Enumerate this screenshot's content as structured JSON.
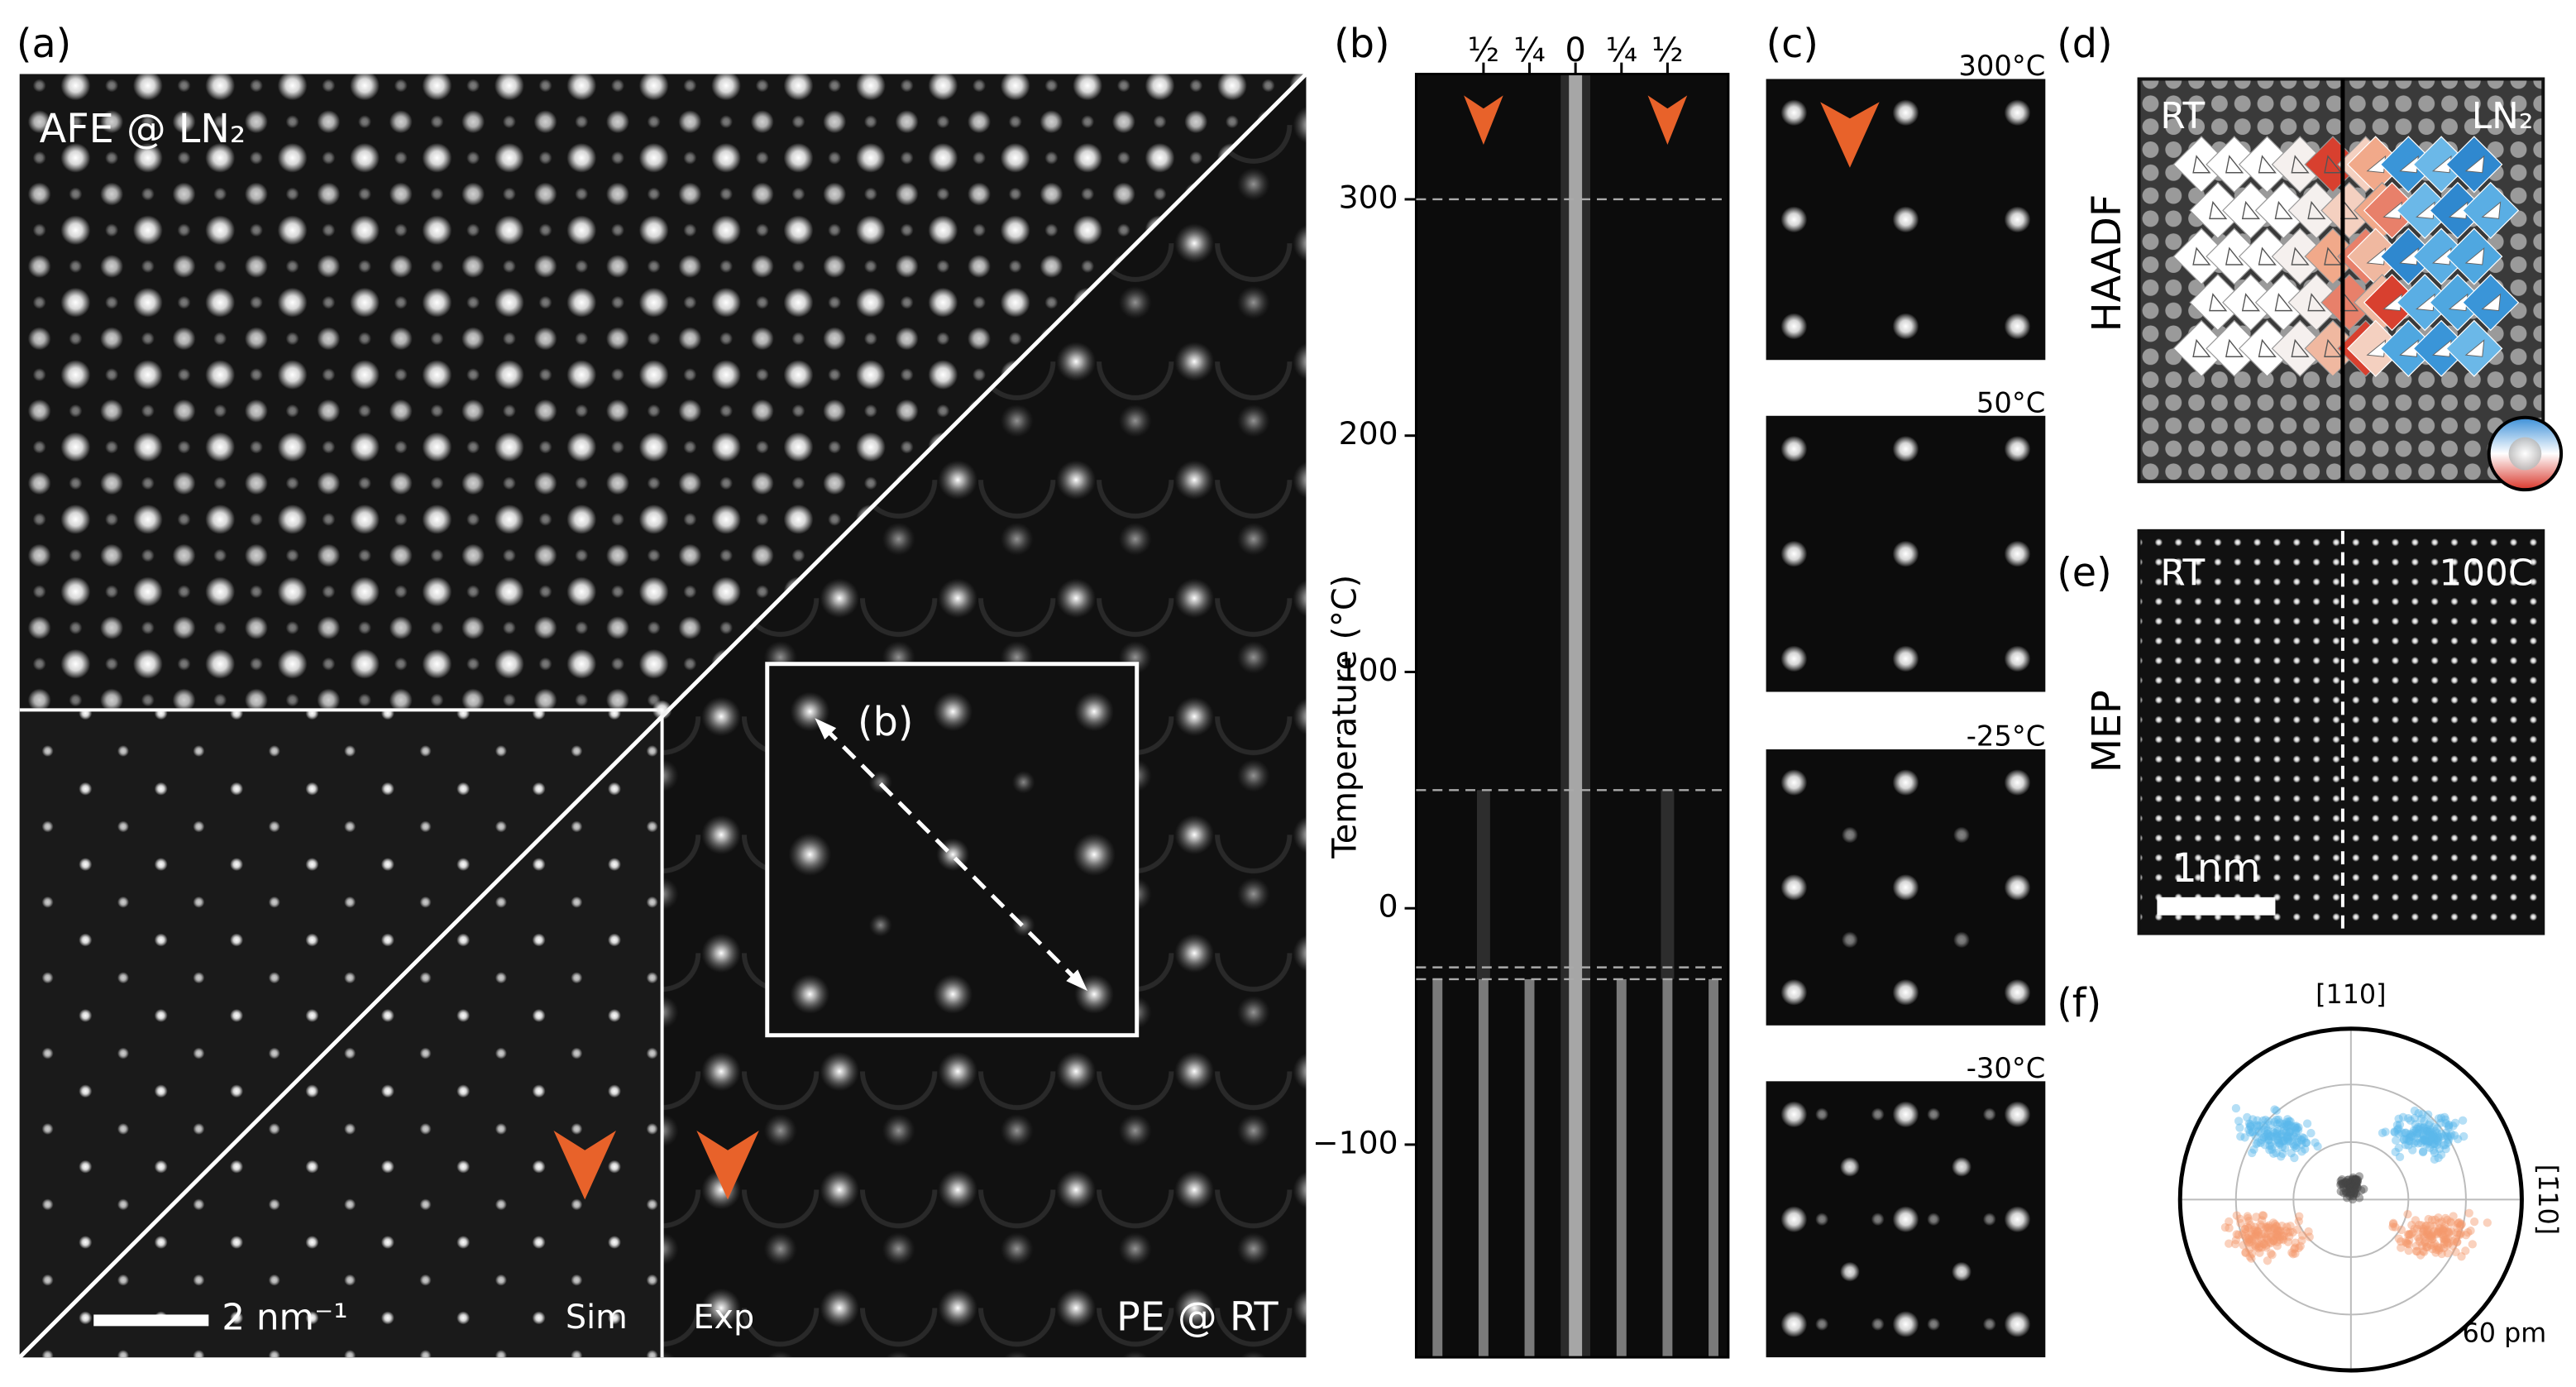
{
  "panels": {
    "a": {
      "label": "(a)",
      "top_left": "AFE @ LN₂",
      "bottom_right": "PE @ RT",
      "sim": "Sim",
      "exp": "Exp",
      "scale_bar": "2 nm⁻¹",
      "inset_label": "(b)"
    },
    "b": {
      "label": "(b)",
      "y_label": "Temperature (°C)",
      "ylim": [
        -190,
        353
      ],
      "yticks": [
        {
          "value": -100,
          "label": "−100"
        },
        0,
        100,
        200,
        300
      ],
      "top_ticks": [
        "½",
        "¼",
        "0",
        "¼",
        "½"
      ],
      "dashed_lines": [
        300,
        50,
        -25,
        -30
      ]
    },
    "c": {
      "label": "(c)",
      "images": [
        "300°C",
        "50°C",
        "-25°C",
        "-30°C"
      ]
    },
    "d": {
      "label": "(d)",
      "side_label": "HAADF",
      "left": "RT",
      "right": "LN₂"
    },
    "e": {
      "label": "(e)",
      "side_label": "MEP",
      "left": "RT",
      "right": "100C",
      "scale_bar": "1nm"
    },
    "f": {
      "label": "(f)",
      "top": "[110]",
      "right": "[1̄10]",
      "radius": "60 pm"
    }
  }
}
